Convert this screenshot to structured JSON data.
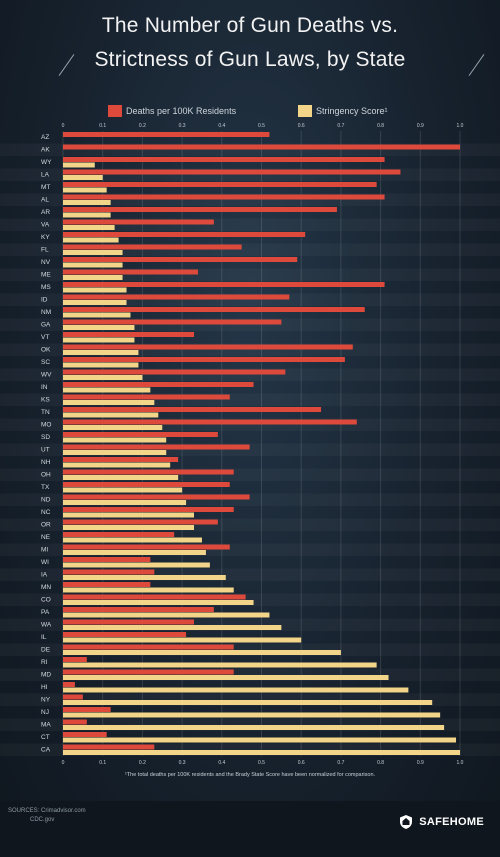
{
  "header": {
    "title_line_1": "The Number of Gun Deaths vs.",
    "title_line_2": "Strictness of Gun Laws, by State"
  },
  "legend": {
    "deaths_label": "Deaths per 100K Residents",
    "score_label": "Stringency Score¹",
    "deaths_color": "#dd4a3c",
    "score_color": "#f3d58a"
  },
  "chart_data": {
    "type": "bar",
    "orientation": "horizontal",
    "xlim": [
      0,
      1
    ],
    "x_ticks": [
      "0",
      "0.1",
      "0.2",
      "0.3",
      "0.4",
      "0.5",
      "0.6",
      "0.7",
      "0.8",
      "0.9",
      "1.0"
    ],
    "grid": true,
    "legend_position": "top",
    "categories": [
      "AZ",
      "AK",
      "WY",
      "LA",
      "MT",
      "AL",
      "AR",
      "VA",
      "KY",
      "FL",
      "NV",
      "ME",
      "MS",
      "ID",
      "NM",
      "GA",
      "VT",
      "OK",
      "SC",
      "WV",
      "IN",
      "KS",
      "TN",
      "MO",
      "SD",
      "UT",
      "NH",
      "OH",
      "TX",
      "ND",
      "NC",
      "OR",
      "NE",
      "MI",
      "WI",
      "IA",
      "MN",
      "CO",
      "PA",
      "WA",
      "IL",
      "DE",
      "RI",
      "MD",
      "HI",
      "NY",
      "NJ",
      "MA",
      "CT",
      "CA"
    ],
    "series": [
      {
        "name": "Deaths per 100K Residents",
        "color": "#dd4a3c",
        "values": [
          0.52,
          1.0,
          0.81,
          0.85,
          0.79,
          0.81,
          0.69,
          0.38,
          0.61,
          0.45,
          0.59,
          0.34,
          0.81,
          0.57,
          0.76,
          0.55,
          0.33,
          0.73,
          0.71,
          0.56,
          0.48,
          0.42,
          0.65,
          0.74,
          0.39,
          0.47,
          0.29,
          0.43,
          0.42,
          0.47,
          0.43,
          0.39,
          0.28,
          0.42,
          0.22,
          0.23,
          0.22,
          0.46,
          0.38,
          0.33,
          0.31,
          0.43,
          0.06,
          0.43,
          0.03,
          0.05,
          0.12,
          0.06,
          0.11,
          0.23
        ]
      },
      {
        "name": "Stringency Score¹",
        "color": "#f3d58a",
        "values": [
          0.0,
          0.0,
          0.08,
          0.1,
          0.11,
          0.12,
          0.12,
          0.13,
          0.14,
          0.15,
          0.15,
          0.15,
          0.16,
          0.16,
          0.17,
          0.18,
          0.18,
          0.19,
          0.19,
          0.2,
          0.22,
          0.23,
          0.24,
          0.25,
          0.26,
          0.26,
          0.27,
          0.29,
          0.3,
          0.31,
          0.33,
          0.33,
          0.35,
          0.36,
          0.37,
          0.41,
          0.43,
          0.48,
          0.52,
          0.55,
          0.6,
          0.7,
          0.79,
          0.82,
          0.87,
          0.93,
          0.95,
          0.96,
          0.99,
          1.0
        ]
      }
    ]
  },
  "footnote": "¹The total deaths per 100K residents and the Brady State Score have been normalized for comparison.",
  "footer": {
    "sources_line_1": "SOURCES: Crimadvisor.com",
    "sources_line_2": "CDC.gov",
    "brand": "SAFEHOME"
  }
}
